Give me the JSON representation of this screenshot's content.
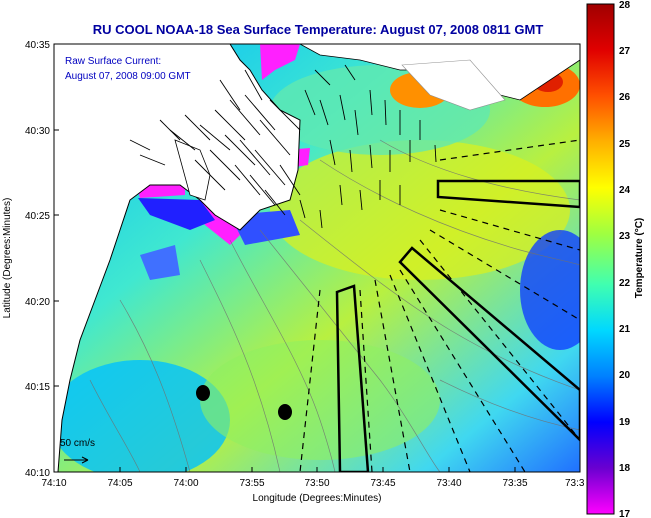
{
  "title": "RU COOL  NOAA-18  Sea Surface Temperature:  August 07, 2008 0811 GMT",
  "overlay": {
    "line1": "Raw Surface Current:",
    "line2": "August 07, 2008 09:00 GMT"
  },
  "axes": {
    "xlabel": "Longitude (Degrees:Minutes)",
    "ylabel": "Latitude (Degrees:Minutes)",
    "x_ticks": [
      "74:10",
      "74:05",
      "74:00",
      "73:55",
      "73:50",
      "73:45",
      "73:40",
      "73:35",
      "73:3"
    ],
    "y_ticks": [
      "40:35",
      "40:30",
      "40:25",
      "40:20",
      "40:15",
      "40:10"
    ]
  },
  "scale": {
    "label": "50 cm/s"
  },
  "colorbar": {
    "label": "Temperature (°C)",
    "min": 17,
    "max": 28,
    "ticks": [
      "28",
      "27",
      "26",
      "25",
      "24",
      "23",
      "22",
      "21",
      "20",
      "19",
      "18",
      "17"
    ],
    "colors": [
      "#ff00ff",
      "#6a00d0",
      "#0000ff",
      "#0080ff",
      "#00d8ff",
      "#40ffb0",
      "#a0ff40",
      "#ffff00",
      "#ffb000",
      "#ff5000",
      "#e00000",
      "#b00000"
    ]
  },
  "land_color": "#ffffff",
  "coast_color": "#000000"
}
